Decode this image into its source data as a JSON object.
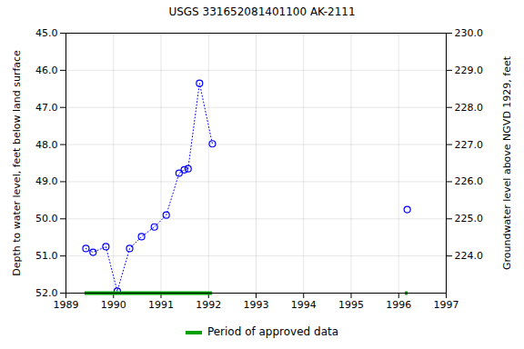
{
  "chart_data": {
    "type": "line",
    "title": "USGS 331652081401100 AK-2111",
    "x": [
      1989.42,
      1989.57,
      1989.84,
      1990.08,
      1990.34,
      1990.59,
      1990.86,
      1991.11,
      1991.38,
      1991.49,
      1991.57,
      1991.81,
      1992.08,
      null,
      1996.18
    ],
    "values": [
      50.8,
      50.9,
      50.75,
      51.95,
      50.8,
      50.48,
      50.22,
      49.9,
      48.77,
      48.68,
      48.65,
      46.35,
      47.98,
      null,
      49.75
    ],
    "color": "#0000ff",
    "marker": "circle",
    "line_style": "dotted",
    "xlim": [
      1989,
      1997
    ],
    "xticks": [
      1989,
      1990,
      1991,
      1992,
      1993,
      1994,
      1995,
      1996,
      1997
    ],
    "ylim": [
      45,
      52
    ],
    "yticks": [
      {
        "value": 45,
        "label": "45.0"
      },
      {
        "value": 46,
        "label": "46.0"
      },
      {
        "value": 47,
        "label": "47.0"
      },
      {
        "value": 48,
        "label": "48.0"
      },
      {
        "value": 49,
        "label": "49.0"
      },
      {
        "value": 50,
        "label": "50.0"
      },
      {
        "value": 51,
        "label": "51.0"
      },
      {
        "value": 52,
        "label": "52.0"
      }
    ],
    "y_label": "Depth to water level, feet below land surface",
    "y2lim": [
      223,
      230
    ],
    "y2ticks": [
      {
        "value": 224,
        "label": "224.0"
      },
      {
        "value": 225,
        "label": "225.0"
      },
      {
        "value": 226,
        "label": "226.0"
      },
      {
        "value": 227,
        "label": "227.0"
      },
      {
        "value": 228,
        "label": "228.0"
      },
      {
        "value": 229,
        "label": "229.0"
      },
      {
        "value": 230,
        "label": "230.0"
      }
    ],
    "y2_label": "Groundwater level above NGVD 1929, feet",
    "approved_periods": {
      "name": "Period of approved data",
      "color": "#00a000",
      "ranges": [
        [
          1989.4,
          1992.08
        ],
        [
          1996.14,
          1996.2
        ]
      ]
    },
    "grid": true
  }
}
